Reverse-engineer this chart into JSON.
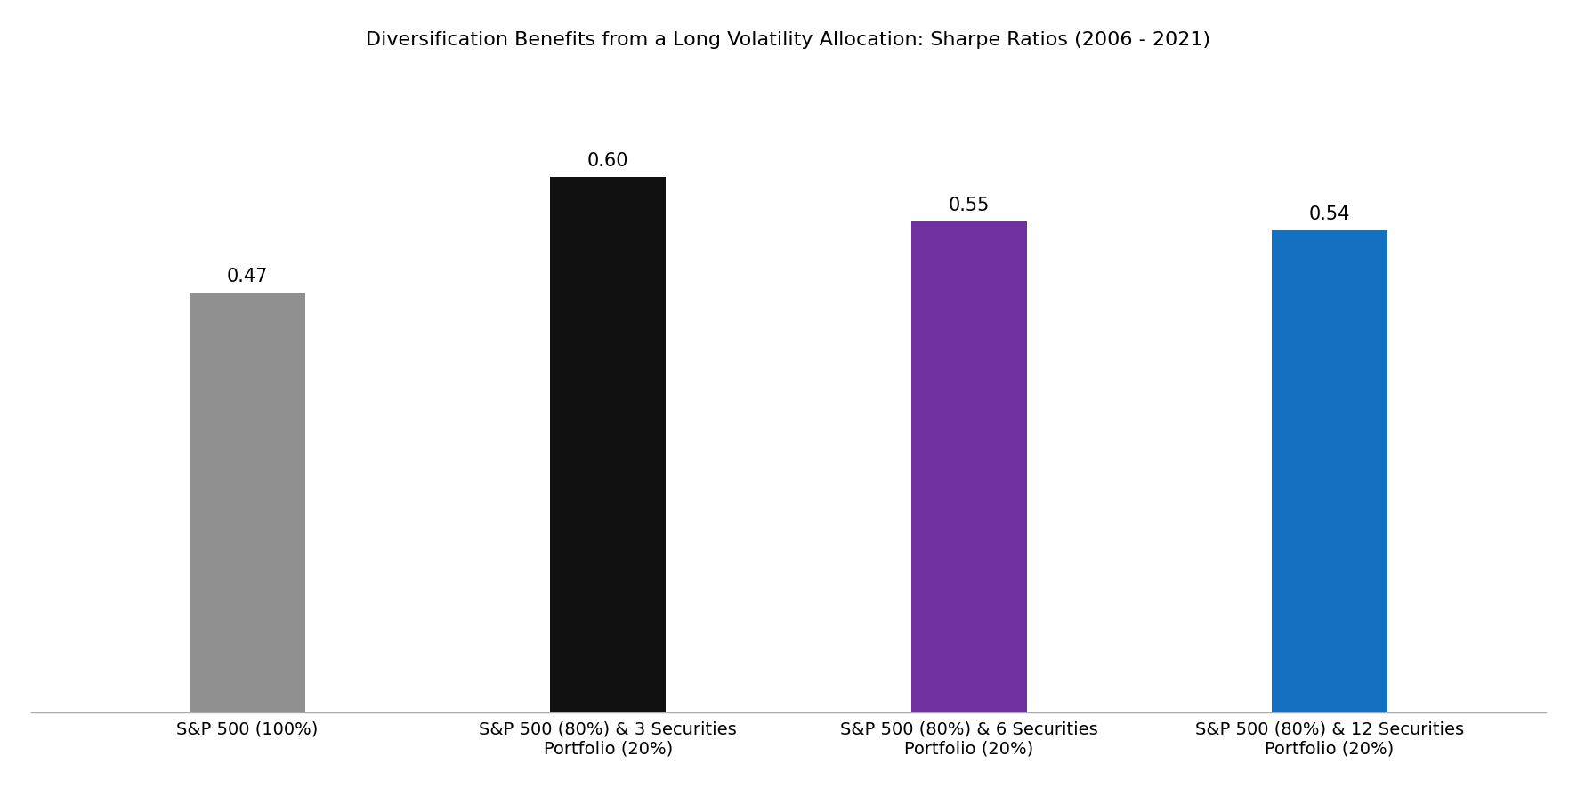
{
  "title": "Diversification Benefits from a Long Volatility Allocation: Sharpe Ratios (2006 - 2021)",
  "categories": [
    "S&P 500 (100%)",
    "S&P 500 (80%) & 3 Securities\nPortfolio (20%)",
    "S&P 500 (80%) & 6 Securities\nPortfolio (20%)",
    "S&P 500 (80%) & 12 Securities\nPortfolio (20%)"
  ],
  "values": [
    0.47,
    0.6,
    0.55,
    0.54
  ],
  "bar_colors": [
    "#909090",
    "#111111",
    "#7030A0",
    "#1470C0"
  ],
  "value_labels": [
    "0.47",
    "0.60",
    "0.55",
    "0.54"
  ],
  "ylim": [
    0,
    0.72
  ],
  "title_fontsize": 16,
  "label_fontsize": 15,
  "tick_fontsize": 14,
  "bar_width": 0.32,
  "background_color": "#ffffff"
}
